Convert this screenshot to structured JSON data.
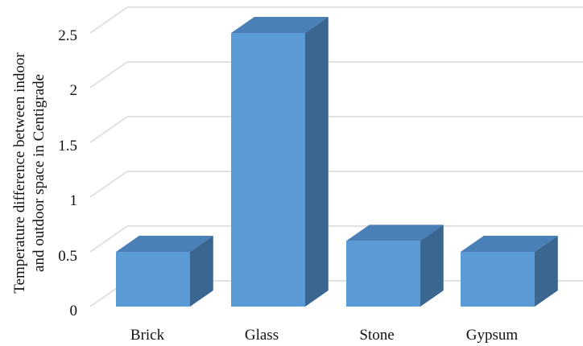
{
  "chart_data": {
    "type": "bar",
    "style": "3d-column",
    "categories": [
      "Brick",
      "Glass",
      "Stone",
      "Gypsum"
    ],
    "values": [
      0.5,
      2.5,
      0.6,
      0.5
    ],
    "ylabel_lines": [
      "Temperature difference between indoor",
      "and outdoor space in Centigrade"
    ],
    "xlabel": "",
    "title": "",
    "ylim": [
      0,
      2.5
    ],
    "yticks": [
      "0",
      "0.5",
      "1",
      "1.5",
      "2",
      "2.5"
    ],
    "grid": true,
    "legend": "none",
    "colors": {
      "front": "#5b9bd5",
      "top": "#4a7fb8",
      "side": "#3a6690",
      "grid": "#d9d9d9"
    }
  }
}
